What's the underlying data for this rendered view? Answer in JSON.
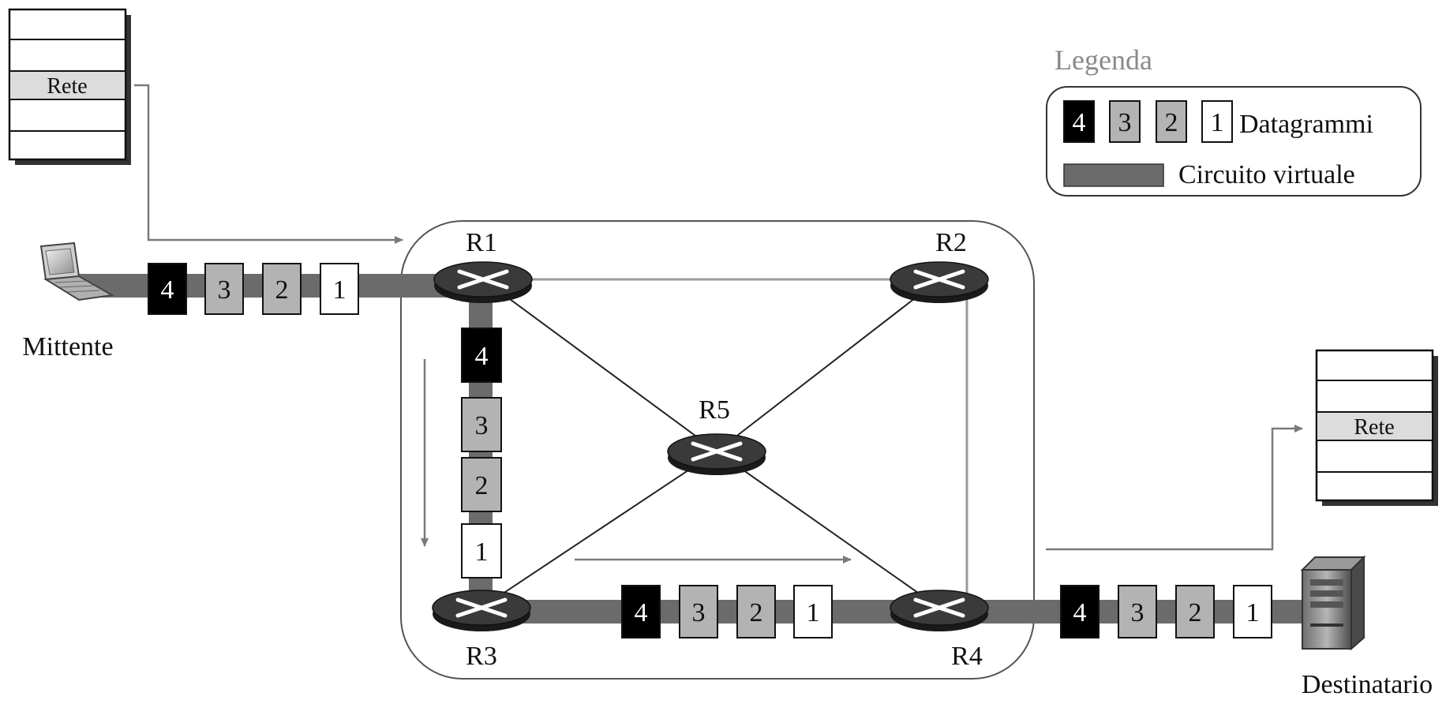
{
  "legend": {
    "title": "Legenda",
    "datagram_label": "Datagrammi",
    "vc_label": "Circuito virtuale",
    "sample_numbers": [
      "4",
      "3",
      "2",
      "1"
    ]
  },
  "stacks": {
    "sender_layer": "Rete",
    "receiver_layer": "Rete"
  },
  "hosts": {
    "sender": "Mittente",
    "receiver": "Destinatario"
  },
  "routers": {
    "r1": "R1",
    "r2": "R2",
    "r3": "R3",
    "r4": "R4",
    "r5": "R5"
  },
  "packets": {
    "sender_link": [
      "4",
      "3",
      "2",
      "1"
    ],
    "r1_r3_link": [
      "4",
      "3",
      "2",
      "1"
    ],
    "r3_r4_link": [
      "4",
      "3",
      "2",
      "1"
    ],
    "receiver_link": [
      "4",
      "3",
      "2",
      "1"
    ]
  },
  "colors": {
    "virtual_circuit": "#6b6b6b",
    "packet_4": "#000000",
    "packet_3": "#b3b3b3",
    "packet_2": "#b3b3b3",
    "packet_1": "#ffffff",
    "router_body": "#2b2b2b",
    "thin_line": "#222222",
    "gray_line": "#9a9a9a",
    "stack_highlight": "#dcdcdc"
  }
}
